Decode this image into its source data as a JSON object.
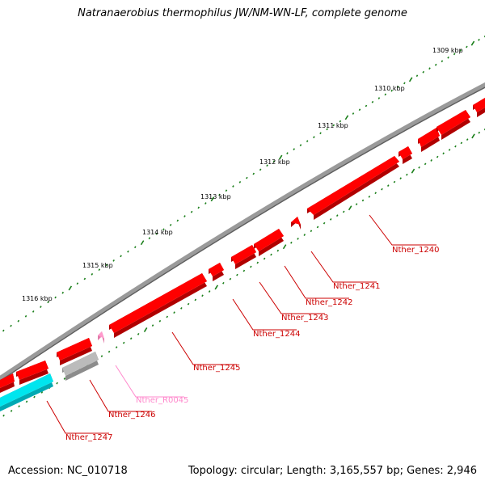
{
  "header": {
    "title": "Natranaerobius thermophilus JW/NM-WN-LF, complete genome"
  },
  "footer": {
    "accession": "Accession: NC_010718",
    "summary": "Topology: circular; Length: 3,165,557 bp; Genes: 2,946"
  },
  "colors": {
    "cds": "#ff0000",
    "cds_label": "#cc0000",
    "ncrna": "#ff99cc",
    "ncrna_label": "#ff88cc",
    "pseudo": "#bbbbbb",
    "repeat": "#00e5ee",
    "backbone": "#808080",
    "ticks": "#1a7f1a"
  },
  "scale": {
    "tick_labels": [
      "1309 kbp",
      "1310 kbp",
      "1311 kbp",
      "1312 kbp",
      "1313 kbp",
      "1314 kbp",
      "1315 kbp",
      "1316 kbp"
    ]
  },
  "genes": [
    {
      "name": "Nther_1240",
      "type": "CDS"
    },
    {
      "name": "Nther_1241",
      "type": "CDS"
    },
    {
      "name": "Nther_1242",
      "type": "CDS"
    },
    {
      "name": "Nther_1243",
      "type": "CDS"
    },
    {
      "name": "Nther_1244",
      "type": "CDS"
    },
    {
      "name": "Nther_1245",
      "type": "CDS"
    },
    {
      "name": "Nther_R0045",
      "type": "ncRNA"
    },
    {
      "name": "Nther_1246",
      "type": "pseudo"
    },
    {
      "name": "Nther_1247",
      "type": "repeat"
    }
  ]
}
